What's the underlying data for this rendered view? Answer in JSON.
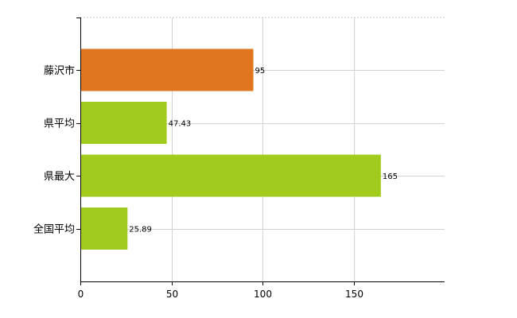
{
  "chart_data": {
    "type": "bar",
    "orientation": "horizontal",
    "categories": [
      "藤沢市",
      "県平均",
      "県最大",
      "全国平均"
    ],
    "values": [
      95,
      47.43,
      165,
      25.89
    ],
    "value_labels": [
      "95",
      "47.43",
      "165",
      "25.89"
    ],
    "bar_colors": [
      "#e0761d",
      "#a2cc1d",
      "#a2cc1d",
      "#a2cc1d"
    ],
    "xlim": [
      0,
      200
    ],
    "x_ticks": [
      0,
      50,
      100,
      150
    ],
    "x_tick_labels": [
      "0",
      "50",
      "100",
      "150"
    ],
    "grid": true,
    "legend": "none"
  }
}
